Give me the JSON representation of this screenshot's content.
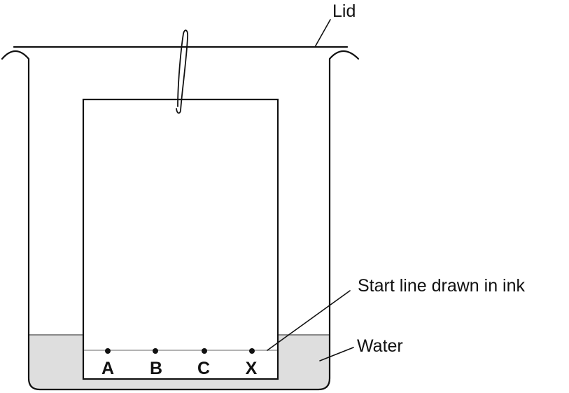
{
  "labels": {
    "lid": "Lid",
    "start_line": "Start line drawn in ink",
    "water": "Water"
  },
  "spots": [
    {
      "letter": "A"
    },
    {
      "letter": "B"
    },
    {
      "letter": "C"
    },
    {
      "letter": "X"
    }
  ],
  "colors": {
    "line": "#111111",
    "water": "#dedede",
    "paper": "#ffffff",
    "start_line": "#999999"
  }
}
